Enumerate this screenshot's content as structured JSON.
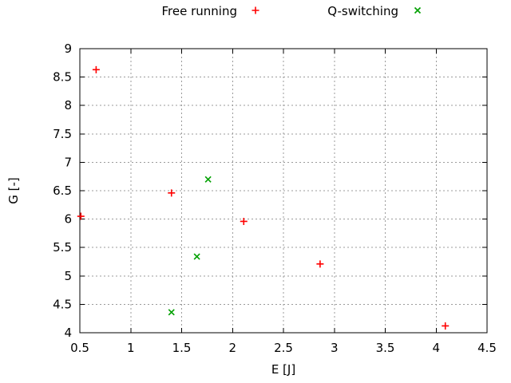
{
  "colors": {
    "background": "#ffffff",
    "axis": "#000000",
    "text": "#000000",
    "grid": "#9b9b9b",
    "free_running": "#ff0000",
    "q_switching": "#00a000"
  },
  "chart_data": {
    "type": "scatter",
    "title": "",
    "xlabel": "E [J]",
    "ylabel": "G [-]",
    "xlim": [
      0.5,
      4.5
    ],
    "ylim": [
      4,
      9
    ],
    "xticks": [
      0.5,
      1,
      1.5,
      2,
      2.5,
      3,
      3.5,
      4,
      4.5
    ],
    "yticks": [
      4,
      4.5,
      5,
      5.5,
      6,
      6.5,
      7,
      7.5,
      8,
      8.5,
      9
    ],
    "grid": true,
    "legend_position": "top-center-outside",
    "series": [
      {
        "name": "Free running",
        "marker": "plus",
        "color": "#ff0000",
        "points": [
          [
            0.51,
            6.05
          ],
          [
            0.66,
            8.63
          ],
          [
            1.4,
            6.46
          ],
          [
            2.11,
            5.96
          ],
          [
            2.86,
            5.21
          ],
          [
            4.09,
            4.12
          ]
        ]
      },
      {
        "name": "Q-switching",
        "marker": "cross",
        "color": "#00a000",
        "points": [
          [
            1.4,
            4.36
          ],
          [
            1.65,
            5.34
          ],
          [
            1.76,
            6.7
          ]
        ]
      }
    ]
  }
}
